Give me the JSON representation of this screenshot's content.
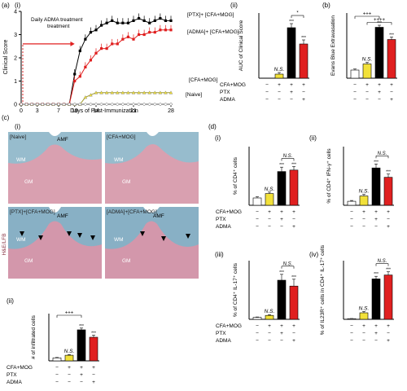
{
  "panel_labels": {
    "a": "(a)",
    "a_i": "(i)",
    "a_ii": "(ii)",
    "b": "(b)",
    "c": "(c)",
    "c_i": "(i)",
    "c_ii": "(ii)",
    "d": "(d)",
    "d_i": "(i)",
    "d_ii": "(ii)",
    "d_iii": "(iii)",
    "d_iv": "(iv)"
  },
  "colors": {
    "ptx": "#000000",
    "adma": "#e02020",
    "cfa": "#f2e13a",
    "naive": "#ffffff",
    "arrow": "#e02020",
    "he_pink": "#d89aaa",
    "lfb_blue": "#7fb3c8"
  },
  "line_chart": {
    "ylabel": "Clinical Score",
    "xlabel": "Days of Post-Immunization",
    "xticks": [
      "0",
      "3",
      "7",
      "10",
      "14",
      "21",
      "28"
    ],
    "yticks": [
      "0",
      "1",
      "2",
      "3",
      "4"
    ],
    "annotation": "Daily ADMA treatment",
    "legend": [
      "[PTX]+ [CFA+MOG]",
      "[ADMA]+ [CFA+MOG]",
      "[CFA+MOG]",
      "[Naive]"
    ]
  },
  "chart_data": [
    {
      "type": "line",
      "title": "",
      "xlabel": "Days of Post-Immunization",
      "ylabel": "Clinical Score",
      "xlim": [
        0,
        28
      ],
      "ylim": [
        0,
        4
      ],
      "series": [
        {
          "name": "[PTX]+ [CFA+MOG]",
          "x": [
            0,
            1,
            2,
            3,
            4,
            5,
            6,
            7,
            8,
            9,
            10,
            11,
            12,
            13,
            14,
            15,
            16,
            17,
            18,
            19,
            20,
            21,
            22,
            23,
            24,
            25,
            26,
            27,
            28
          ],
          "y": [
            0,
            0,
            0,
            0,
            0,
            0,
            0,
            0,
            0,
            0,
            1.3,
            2.3,
            2.8,
            3.1,
            3.2,
            3.4,
            3.5,
            3.6,
            3.5,
            3.5,
            3.5,
            3.6,
            3.7,
            3.6,
            3.5,
            3.6,
            3.7,
            3.6,
            3.6
          ]
        },
        {
          "name": "[ADMA]+ [CFA+MOG]",
          "x": [
            0,
            1,
            2,
            3,
            4,
            5,
            6,
            7,
            8,
            9,
            10,
            11,
            12,
            13,
            14,
            15,
            16,
            17,
            18,
            19,
            20,
            21,
            22,
            23,
            24,
            25,
            26,
            27,
            28
          ],
          "y": [
            0,
            0,
            0,
            0,
            0,
            0,
            0,
            0,
            0,
            0,
            1.0,
            1.2,
            1.6,
            1.9,
            2.2,
            2.4,
            2.4,
            2.6,
            2.6,
            2.8,
            2.9,
            2.8,
            3.0,
            3.0,
            3.1,
            3.1,
            3.2,
            3.2,
            3.2
          ]
        },
        {
          "name": "[CFA+MOG]",
          "x": [
            0,
            1,
            2,
            3,
            4,
            5,
            6,
            7,
            8,
            9,
            10,
            11,
            12,
            13,
            14,
            15,
            16,
            17,
            18,
            19,
            20,
            21,
            22,
            23,
            24,
            25,
            26,
            27,
            28
          ],
          "y": [
            0,
            0,
            0,
            0,
            0,
            0,
            0,
            0,
            0,
            0,
            0,
            0,
            0.3,
            0.4,
            0.5,
            0.5,
            0.5,
            0.5,
            0.5,
            0.5,
            0.5,
            0.5,
            0.5,
            0.5,
            0.5,
            0.5,
            0.5,
            0.5,
            0.5
          ]
        },
        {
          "name": "[Naive]",
          "x": [
            0,
            1,
            2,
            3,
            4,
            5,
            6,
            7,
            8,
            9,
            10,
            11,
            12,
            13,
            14,
            15,
            16,
            17,
            18,
            19,
            20,
            21,
            22,
            23,
            24,
            25,
            26,
            27,
            28
          ],
          "y": [
            0,
            0,
            0,
            0,
            0,
            0,
            0,
            0,
            0,
            0,
            0,
            0,
            0,
            0,
            0,
            0,
            0,
            0,
            0,
            0,
            0,
            0,
            0,
            0,
            0,
            0,
            0,
            0,
            0
          ]
        }
      ]
    },
    {
      "type": "bar",
      "id": "aii",
      "ylabel": "AUC of Clinical Score",
      "values": [
        0,
        5,
        62,
        42
      ],
      "errors": [
        0,
        2,
        5,
        5
      ],
      "ymax": 80
    },
    {
      "type": "bar",
      "id": "b",
      "ylabel": "Evans Blue Extravasation",
      "values": [
        0.4,
        0.7,
        2.5,
        1.9
      ],
      "errors": [
        0.05,
        0.08,
        0.1,
        0.12
      ],
      "ymax": 3.2
    },
    {
      "type": "bar",
      "id": "cii",
      "ylabel": "# of infiltrated cells",
      "values": [
        20,
        38,
        210,
        160
      ],
      "errors": [
        3,
        5,
        12,
        14
      ],
      "ymax": 320
    },
    {
      "type": "bar",
      "id": "di",
      "ylabel": "% of CD4⁺ cells",
      "values": [
        2.5,
        4,
        11.5,
        12
      ],
      "errors": [
        0.4,
        0.5,
        1.5,
        1.2
      ],
      "ymax": 20
    },
    {
      "type": "bar",
      "id": "dii",
      "ylabel": "% of CD4⁺ IFN-γ⁺ cells",
      "values": [
        1.5,
        3.5,
        14,
        10.5
      ],
      "errors": [
        0.3,
        0.6,
        1.5,
        1.2
      ],
      "ymax": 22
    },
    {
      "type": "bar",
      "id": "diii",
      "ylabel": "% of CD4⁺ IL-17⁺ cells",
      "values": [
        1,
        2,
        20,
        17
      ],
      "errors": [
        0.2,
        0.4,
        3,
        3.5
      ],
      "ymax": 30
    },
    {
      "type": "bar",
      "id": "div",
      "ylabel": "% of IL23R⁺ cells in CD4⁺ IL-17⁺ cells",
      "values": [
        1,
        10,
        62,
        68
      ],
      "errors": [
        0.2,
        2,
        4,
        5
      ],
      "ymax": 90
    }
  ],
  "group_table": {
    "rows": [
      {
        "label": "CFA+MOG",
        "vals": [
          "−",
          "+",
          "+",
          "+"
        ]
      },
      {
        "label": "PTX",
        "vals": [
          "−",
          "−",
          "+",
          "−"
        ]
      },
      {
        "label": "ADMA",
        "vals": [
          "−",
          "−",
          "−",
          "+"
        ]
      }
    ]
  },
  "sig": {
    "ns": "N.S.",
    "star": "*",
    "stars3": "***",
    "plus3": "+++",
    "plus4": "++++"
  },
  "histology": {
    "side_label": "H&E/LFB",
    "panels": [
      "[Naive]",
      "[CFA+MOG]",
      "[PTX]+[CFA+MOG]",
      "[ADMA]+[CFA+MOG]"
    ],
    "amf": "AMF",
    "wm": "WM",
    "gm": "GM"
  }
}
